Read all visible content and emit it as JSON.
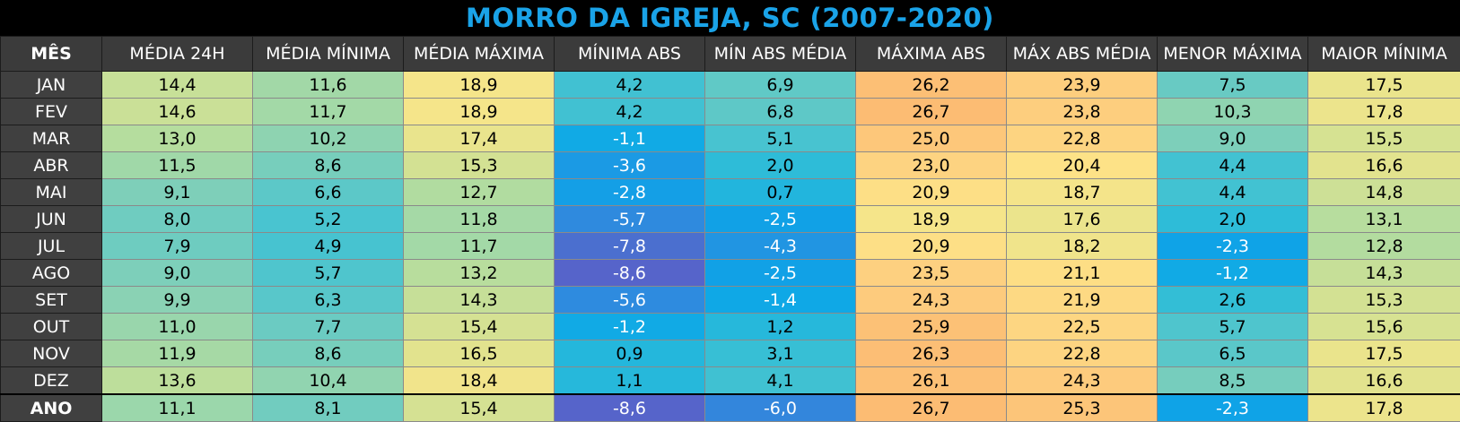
{
  "title": "MORRO DA IGREJA, SC (2007-2020)",
  "chart_data": {
    "type": "table",
    "title": "MORRO DA IGREJA, SC (2007-2020)",
    "columns": [
      "MÊS",
      "MÉDIA 24H",
      "MÉDIA MÍNIMA",
      "MÉDIA MÁXIMA",
      "MÍNIMA ABS",
      "MÍN ABS MÉDIA",
      "MÁXIMA ABS",
      "MÁX ABS MÉDIA",
      "MENOR MÁXIMA",
      "MAIOR MÍNIMA"
    ],
    "rows": [
      {
        "month": "JAN",
        "values": [
          "14,4",
          "11,6",
          "18,9",
          "4,2",
          "6,9",
          "26,2",
          "23,9",
          "7,5",
          "17,5"
        ]
      },
      {
        "month": "FEV",
        "values": [
          "14,6",
          "11,7",
          "18,9",
          "4,2",
          "6,8",
          "26,7",
          "23,8",
          "10,3",
          "17,8"
        ]
      },
      {
        "month": "MAR",
        "values": [
          "13,0",
          "10,2",
          "17,4",
          "-1,1",
          "5,1",
          "25,0",
          "22,8",
          "9,0",
          "15,5"
        ]
      },
      {
        "month": "ABR",
        "values": [
          "11,5",
          "8,6",
          "15,3",
          "-3,6",
          "2,0",
          "23,0",
          "20,4",
          "4,4",
          "16,6"
        ]
      },
      {
        "month": "MAI",
        "values": [
          "9,1",
          "6,6",
          "12,7",
          "-2,8",
          "0,7",
          "20,9",
          "18,7",
          "4,4",
          "14,8"
        ]
      },
      {
        "month": "JUN",
        "values": [
          "8,0",
          "5,2",
          "11,8",
          "-5,7",
          "-2,5",
          "18,9",
          "17,6",
          "2,0",
          "13,1"
        ]
      },
      {
        "month": "JUL",
        "values": [
          "7,9",
          "4,9",
          "11,7",
          "-7,8",
          "-4,3",
          "20,9",
          "18,2",
          "-2,3",
          "12,8"
        ]
      },
      {
        "month": "AGO",
        "values": [
          "9,0",
          "5,7",
          "13,2",
          "-8,6",
          "-2,5",
          "23,5",
          "21,1",
          "-1,2",
          "14,3"
        ]
      },
      {
        "month": "SET",
        "values": [
          "9,9",
          "6,3",
          "14,3",
          "-5,6",
          "-1,4",
          "24,3",
          "21,9",
          "2,6",
          "15,3"
        ]
      },
      {
        "month": "OUT",
        "values": [
          "11,0",
          "7,7",
          "15,4",
          "-1,2",
          "1,2",
          "25,9",
          "22,5",
          "5,7",
          "15,6"
        ]
      },
      {
        "month": "NOV",
        "values": [
          "11,9",
          "8,6",
          "16,5",
          "0,9",
          "3,1",
          "26,3",
          "22,8",
          "6,5",
          "17,5"
        ]
      },
      {
        "month": "DEZ",
        "values": [
          "13,6",
          "10,4",
          "18,4",
          "1,1",
          "4,1",
          "26,1",
          "24,3",
          "8,5",
          "16,6"
        ]
      }
    ],
    "year_row": {
      "month": "ANO",
      "values": [
        "11,1",
        "8,1",
        "15,4",
        "-8,6",
        "-6,0",
        "26,7",
        "25,3",
        "-2,3",
        "17,8"
      ]
    }
  },
  "colors": {
    "title": "#1aa3e8",
    "header_bg": "#3b3b3b",
    "scale": [
      "#5b5fc7",
      "#2b8ee0",
      "#0ba6e8",
      "#2cbcd8",
      "#4bc4cf",
      "#7dcfba",
      "#b0dca0",
      "#dfe38f",
      "#fde588",
      "#fdd180",
      "#fcba72"
    ]
  }
}
